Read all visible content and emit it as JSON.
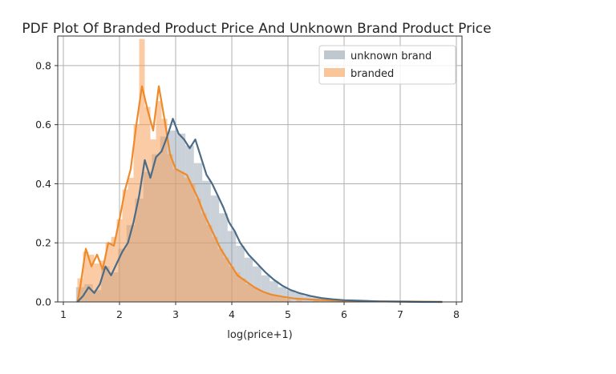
{
  "colors": {
    "unknown_brand": "#4c6b86",
    "branded": "#ee8a2a"
  },
  "chart_data": {
    "type": "area",
    "title": "PDF Plot Of Branded Product Price And Unknown Brand Product Price",
    "xlabel": "log(price+1)",
    "ylabel": "",
    "xlim": [
      0.9,
      8.1
    ],
    "ylim": [
      0,
      0.9
    ],
    "xticks": [
      1,
      2,
      3,
      4,
      5,
      6,
      7,
      8
    ],
    "yticks": [
      0.0,
      0.2,
      0.4,
      0.6,
      0.8
    ],
    "xtick_labels": [
      "1",
      "2",
      "3",
      "4",
      "5",
      "6",
      "7",
      "8"
    ],
    "ytick_labels": [
      "0.0",
      "0.2",
      "0.4",
      "0.6",
      "0.8"
    ],
    "grid": true,
    "legend_position": "top-right",
    "series": [
      {
        "name": "unknown brand",
        "color_key": "unknown_brand",
        "hist": [
          [
            1.3,
            0.05
          ],
          [
            1.45,
            0.06
          ],
          [
            1.6,
            0.04
          ],
          [
            1.75,
            0.12
          ],
          [
            1.9,
            0.1
          ],
          [
            2.05,
            0.18
          ],
          [
            2.2,
            0.26
          ],
          [
            2.35,
            0.35
          ],
          [
            2.5,
            0.44
          ],
          [
            2.65,
            0.5
          ],
          [
            2.8,
            0.56
          ],
          [
            2.95,
            0.58
          ],
          [
            3.1,
            0.57
          ],
          [
            3.25,
            0.53
          ],
          [
            3.4,
            0.47
          ],
          [
            3.55,
            0.41
          ],
          [
            3.7,
            0.36
          ],
          [
            3.85,
            0.3
          ],
          [
            4.0,
            0.24
          ],
          [
            4.15,
            0.19
          ],
          [
            4.3,
            0.15
          ],
          [
            4.45,
            0.12
          ],
          [
            4.6,
            0.09
          ],
          [
            4.75,
            0.07
          ],
          [
            4.9,
            0.05
          ],
          [
            5.05,
            0.04
          ],
          [
            5.2,
            0.03
          ],
          [
            5.35,
            0.02
          ],
          [
            5.5,
            0.015
          ],
          [
            5.65,
            0.012
          ],
          [
            5.8,
            0.01
          ],
          [
            5.95,
            0.008
          ],
          [
            6.1,
            0.006
          ],
          [
            6.25,
            0.005
          ],
          [
            6.5,
            0.004
          ],
          [
            6.8,
            0.003
          ],
          [
            7.1,
            0.002
          ],
          [
            7.4,
            0.001
          ],
          [
            7.7,
            0.001
          ]
        ],
        "kde": [
          [
            1.25,
            0.0
          ],
          [
            1.35,
            0.02
          ],
          [
            1.45,
            0.05
          ],
          [
            1.55,
            0.03
          ],
          [
            1.65,
            0.06
          ],
          [
            1.75,
            0.12
          ],
          [
            1.85,
            0.09
          ],
          [
            1.95,
            0.13
          ],
          [
            2.05,
            0.17
          ],
          [
            2.15,
            0.2
          ],
          [
            2.25,
            0.27
          ],
          [
            2.35,
            0.36
          ],
          [
            2.45,
            0.48
          ],
          [
            2.55,
            0.42
          ],
          [
            2.65,
            0.49
          ],
          [
            2.75,
            0.51
          ],
          [
            2.85,
            0.56
          ],
          [
            2.95,
            0.62
          ],
          [
            3.05,
            0.57
          ],
          [
            3.15,
            0.55
          ],
          [
            3.25,
            0.52
          ],
          [
            3.35,
            0.55
          ],
          [
            3.45,
            0.49
          ],
          [
            3.55,
            0.43
          ],
          [
            3.65,
            0.4
          ],
          [
            3.75,
            0.36
          ],
          [
            3.85,
            0.32
          ],
          [
            3.95,
            0.27
          ],
          [
            4.05,
            0.24
          ],
          [
            4.15,
            0.2
          ],
          [
            4.3,
            0.16
          ],
          [
            4.45,
            0.13
          ],
          [
            4.6,
            0.1
          ],
          [
            4.75,
            0.075
          ],
          [
            4.9,
            0.055
          ],
          [
            5.05,
            0.04
          ],
          [
            5.2,
            0.03
          ],
          [
            5.4,
            0.02
          ],
          [
            5.6,
            0.013
          ],
          [
            5.8,
            0.009
          ],
          [
            6.0,
            0.006
          ],
          [
            6.3,
            0.004
          ],
          [
            6.6,
            0.002
          ],
          [
            7.0,
            0.001
          ],
          [
            7.4,
            0.0
          ],
          [
            7.75,
            0.0
          ]
        ]
      },
      {
        "name": "branded",
        "color_key": "branded",
        "hist": [
          [
            1.3,
            0.08
          ],
          [
            1.4,
            0.17
          ],
          [
            1.5,
            0.16
          ],
          [
            1.6,
            0.13
          ],
          [
            1.7,
            0.14
          ],
          [
            1.8,
            0.2
          ],
          [
            1.9,
            0.22
          ],
          [
            2.0,
            0.28
          ],
          [
            2.1,
            0.38
          ],
          [
            2.2,
            0.42
          ],
          [
            2.3,
            0.6
          ],
          [
            2.4,
            0.89
          ],
          [
            2.5,
            0.66
          ],
          [
            2.6,
            0.55
          ],
          [
            2.7,
            0.68
          ],
          [
            2.8,
            0.62
          ],
          [
            2.9,
            0.5
          ],
          [
            3.0,
            0.45
          ],
          [
            3.1,
            0.44
          ],
          [
            3.2,
            0.42
          ],
          [
            3.3,
            0.4
          ],
          [
            3.4,
            0.35
          ],
          [
            3.5,
            0.3
          ],
          [
            3.6,
            0.26
          ],
          [
            3.7,
            0.22
          ],
          [
            3.8,
            0.18
          ],
          [
            3.9,
            0.15
          ],
          [
            4.0,
            0.12
          ],
          [
            4.1,
            0.1
          ],
          [
            4.2,
            0.08
          ],
          [
            4.3,
            0.06
          ],
          [
            4.4,
            0.05
          ],
          [
            4.5,
            0.04
          ],
          [
            4.6,
            0.03
          ],
          [
            4.7,
            0.025
          ],
          [
            4.8,
            0.02
          ],
          [
            4.9,
            0.015
          ],
          [
            5.0,
            0.01
          ],
          [
            5.2,
            0.008
          ],
          [
            5.5,
            0.005
          ],
          [
            6.0,
            0.003
          ],
          [
            6.5,
            0.002
          ],
          [
            7.0,
            0.001
          ],
          [
            7.5,
            0.001
          ]
        ],
        "kde": [
          [
            1.25,
            0.0
          ],
          [
            1.3,
            0.05
          ],
          [
            1.4,
            0.18
          ],
          [
            1.5,
            0.12
          ],
          [
            1.6,
            0.16
          ],
          [
            1.7,
            0.11
          ],
          [
            1.8,
            0.2
          ],
          [
            1.9,
            0.19
          ],
          [
            2.0,
            0.28
          ],
          [
            2.1,
            0.38
          ],
          [
            2.2,
            0.45
          ],
          [
            2.3,
            0.6
          ],
          [
            2.4,
            0.73
          ],
          [
            2.5,
            0.65
          ],
          [
            2.6,
            0.58
          ],
          [
            2.7,
            0.73
          ],
          [
            2.8,
            0.62
          ],
          [
            2.9,
            0.5
          ],
          [
            3.0,
            0.45
          ],
          [
            3.1,
            0.44
          ],
          [
            3.2,
            0.43
          ],
          [
            3.3,
            0.39
          ],
          [
            3.4,
            0.35
          ],
          [
            3.5,
            0.3
          ],
          [
            3.6,
            0.26
          ],
          [
            3.7,
            0.22
          ],
          [
            3.8,
            0.18
          ],
          [
            3.9,
            0.15
          ],
          [
            4.0,
            0.12
          ],
          [
            4.1,
            0.09
          ],
          [
            4.25,
            0.07
          ],
          [
            4.4,
            0.05
          ],
          [
            4.55,
            0.035
          ],
          [
            4.7,
            0.025
          ],
          [
            4.9,
            0.018
          ],
          [
            5.1,
            0.012
          ],
          [
            5.4,
            0.008
          ],
          [
            5.8,
            0.005
          ],
          [
            6.3,
            0.003
          ],
          [
            6.8,
            0.002
          ],
          [
            7.3,
            0.001
          ],
          [
            7.75,
            0.0
          ]
        ]
      }
    ]
  }
}
